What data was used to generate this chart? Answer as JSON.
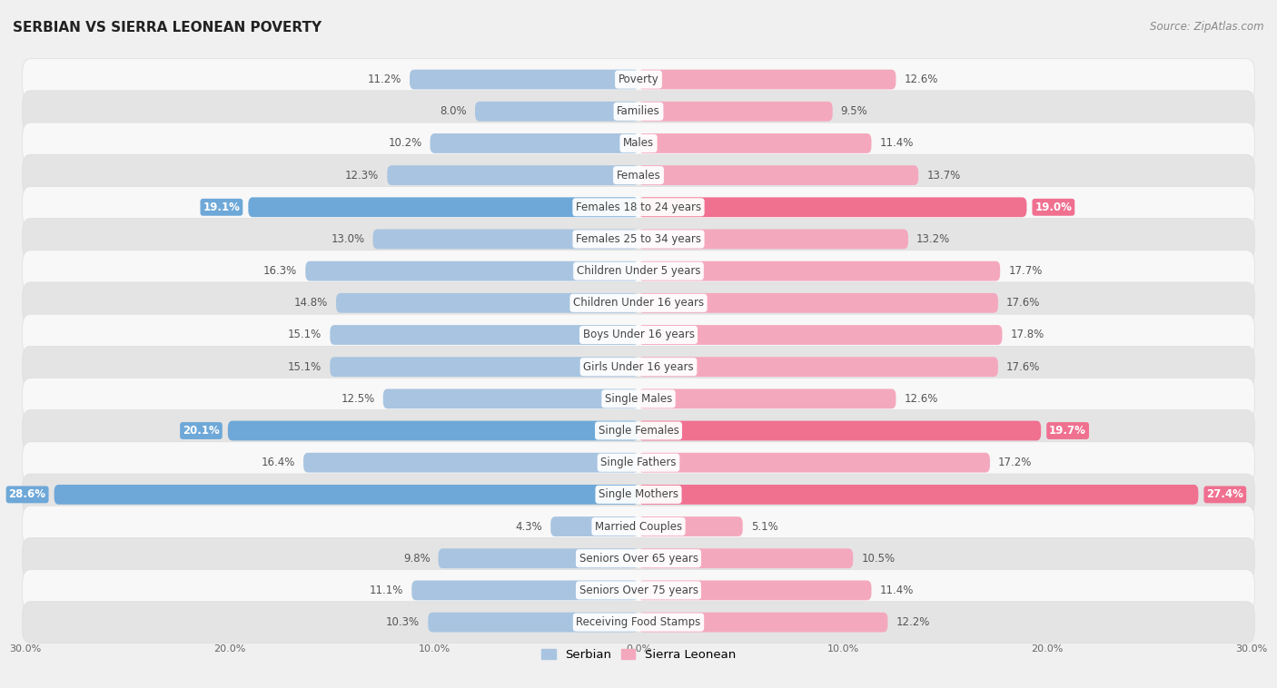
{
  "title": "SERBIAN VS SIERRA LEONEAN POVERTY",
  "source": "Source: ZipAtlas.com",
  "categories": [
    "Poverty",
    "Families",
    "Males",
    "Females",
    "Females 18 to 24 years",
    "Females 25 to 34 years",
    "Children Under 5 years",
    "Children Under 16 years",
    "Boys Under 16 years",
    "Girls Under 16 years",
    "Single Males",
    "Single Females",
    "Single Fathers",
    "Single Mothers",
    "Married Couples",
    "Seniors Over 65 years",
    "Seniors Over 75 years",
    "Receiving Food Stamps"
  ],
  "serbian": [
    11.2,
    8.0,
    10.2,
    12.3,
    19.1,
    13.0,
    16.3,
    14.8,
    15.1,
    15.1,
    12.5,
    20.1,
    16.4,
    28.6,
    4.3,
    9.8,
    11.1,
    10.3
  ],
  "sierra_leonean": [
    12.6,
    9.5,
    11.4,
    13.7,
    19.0,
    13.2,
    17.7,
    17.6,
    17.8,
    17.6,
    12.6,
    19.7,
    17.2,
    27.4,
    5.1,
    10.5,
    11.4,
    12.2
  ],
  "serbian_color": "#a8c4e0",
  "sierra_leonean_color": "#f4a8be",
  "serbian_highlight_color": "#6ea8d8",
  "sierra_leonean_highlight_color": "#f07090",
  "highlight_rows": [
    4,
    11,
    13
  ],
  "background_color": "#f0f0f0",
  "row_bg_light": "#f8f8f8",
  "row_bg_dark": "#e4e4e4",
  "axis_max": 30.0,
  "bar_height": 0.62,
  "label_fontsize": 8.5,
  "title_fontsize": 11,
  "source_fontsize": 8.5
}
